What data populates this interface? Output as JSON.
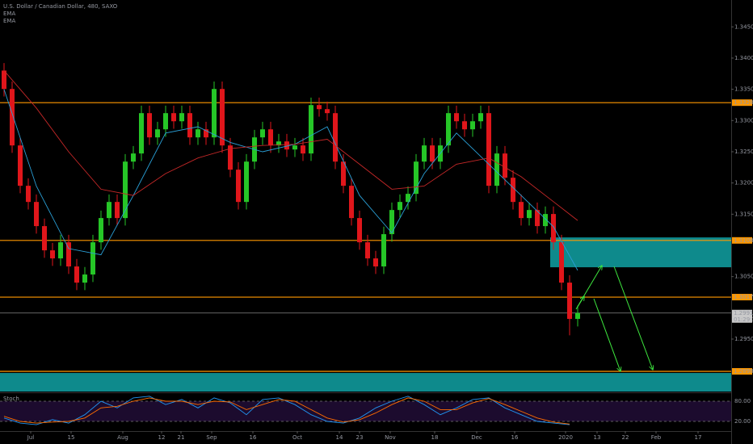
{
  "chart_data": {
    "type": "candlestick",
    "title": "U.S. Dollar / Canadian Dollar, 480, SAXO",
    "open": [
      1.338,
      1.33505,
      1.32601,
      1.31955,
      1.31696,
      1.31309,
      1.30921,
      1.30792,
      1.3105,
      1.30663,
      1.30404,
      1.30534,
      1.3105,
      1.31438,
      1.31696,
      1.31438,
      1.32342,
      1.32472,
      1.33118,
      1.3273,
      1.32859,
      1.33118,
      1.32988,
      1.33118,
      1.3273,
      1.32859,
      1.3273,
      1.33505,
      1.32601,
      1.32213,
      1.31696,
      1.32342,
      1.3273,
      1.32859,
      1.32601,
      1.32665,
      1.32536,
      1.32601,
      1.32472,
      1.33247,
      1.33182,
      1.33118,
      1.32342,
      1.31955,
      1.31438,
      1.3105,
      1.30792,
      1.30663,
      1.3118,
      1.31567,
      1.31696,
      1.31826,
      1.32342,
      1.32601,
      1.32342,
      1.32601,
      1.33118,
      1.32988,
      1.32859,
      1.32988,
      1.33118,
      1.31955,
      1.32472,
      1.32084,
      1.31696,
      1.31438,
      1.31567,
      1.31309,
      1.31503,
      1.3105,
      1.30404,
      1.29823
    ],
    "high": [
      1.3392,
      1.33625,
      1.32721,
      1.32075,
      1.31816,
      1.31429,
      1.31041,
      1.3117,
      1.3117,
      1.30783,
      1.30654,
      1.3117,
      1.31558,
      1.31816,
      1.31816,
      1.32462,
      1.32592,
      1.33238,
      1.33238,
      1.32979,
      1.33238,
      1.33238,
      1.33238,
      1.33238,
      1.32979,
      1.32979,
      1.33625,
      1.33625,
      1.32721,
      1.32333,
      1.32462,
      1.3285,
      1.32979,
      1.32979,
      1.32785,
      1.32785,
      1.32721,
      1.32721,
      1.33367,
      1.33367,
      1.33302,
      1.33238,
      1.32462,
      1.32075,
      1.31558,
      1.3117,
      1.30912,
      1.313,
      1.31687,
      1.31816,
      1.31946,
      1.32462,
      1.32721,
      1.32721,
      1.32721,
      1.33238,
      1.33238,
      1.33108,
      1.33108,
      1.33238,
      1.33238,
      1.32592,
      1.32592,
      1.32204,
      1.31816,
      1.31687,
      1.31687,
      1.31623,
      1.31623,
      1.3117,
      1.30524,
      1.30037
    ],
    "low": [
      1.33385,
      1.32481,
      1.31835,
      1.31576,
      1.31189,
      1.30801,
      1.30672,
      1.30672,
      1.30543,
      1.30284,
      1.30284,
      1.30414,
      1.3093,
      1.31318,
      1.31318,
      1.31318,
      1.32222,
      1.32352,
      1.3261,
      1.3261,
      1.32739,
      1.32868,
      1.32868,
      1.3261,
      1.3261,
      1.3261,
      1.3261,
      1.32481,
      1.32093,
      1.31576,
      1.31576,
      1.32222,
      1.3261,
      1.32481,
      1.32481,
      1.32416,
      1.32416,
      1.32352,
      1.32352,
      1.33062,
      1.32998,
      1.32222,
      1.31835,
      1.31318,
      1.3093,
      1.30672,
      1.30543,
      1.30543,
      1.3106,
      1.31447,
      1.31576,
      1.31706,
      1.32222,
      1.32222,
      1.32222,
      1.32481,
      1.32868,
      1.32739,
      1.32739,
      1.32868,
      1.31835,
      1.31835,
      1.31964,
      1.31576,
      1.31318,
      1.31318,
      1.31189,
      1.31189,
      1.3093,
      1.30284,
      1.2956,
      1.29703
    ],
    "close": [
      1.33505,
      1.32601,
      1.31955,
      1.31696,
      1.31309,
      1.30921,
      1.30792,
      1.3105,
      1.30663,
      1.30404,
      1.30534,
      1.3105,
      1.31438,
      1.31696,
      1.31438,
      1.32342,
      1.32472,
      1.33118,
      1.3273,
      1.32859,
      1.33118,
      1.32988,
      1.33118,
      1.3273,
      1.32859,
      1.3273,
      1.33505,
      1.32601,
      1.32213,
      1.31696,
      1.32342,
      1.3273,
      1.32859,
      1.32601,
      1.32665,
      1.32536,
      1.32601,
      1.32472,
      1.33247,
      1.33182,
      1.33118,
      1.32342,
      1.31955,
      1.31438,
      1.3105,
      1.30792,
      1.30663,
      1.3118,
      1.31567,
      1.31696,
      1.31826,
      1.32342,
      1.32601,
      1.32342,
      1.32601,
      1.33118,
      1.32988,
      1.32859,
      1.32988,
      1.33118,
      1.31955,
      1.32472,
      1.32084,
      1.31696,
      1.31438,
      1.31567,
      1.31309,
      1.31503,
      1.3105,
      1.30404,
      1.29823,
      1.29917
    ],
    "up_color": "#26c627",
    "down_color": "#e0161b",
    "xlim": [
      -0.5,
      90
    ],
    "xticks": [
      {
        "value": 3.3,
        "label": "Jul"
      },
      {
        "value": 8.3,
        "label": "15"
      },
      {
        "value": 14.7,
        "label": "Aug"
      },
      {
        "value": 19.5,
        "label": "12"
      },
      {
        "value": 21.9,
        "label": "21"
      },
      {
        "value": 25.7,
        "label": "Sep"
      },
      {
        "value": 30.8,
        "label": "16"
      },
      {
        "value": 36.3,
        "label": "Oct"
      },
      {
        "value": 41.5,
        "label": "14"
      },
      {
        "value": 44,
        "label": "23"
      },
      {
        "value": 47.8,
        "label": "Nov"
      },
      {
        "value": 53.3,
        "label": "18"
      },
      {
        "value": 58.5,
        "label": "Dec"
      },
      {
        "value": 63.2,
        "label": "16"
      },
      {
        "value": 69.5,
        "label": "2020"
      },
      {
        "value": 73.4,
        "label": "13"
      },
      {
        "value": 76.9,
        "label": "22"
      },
      {
        "value": 80.7,
        "label": "Feb"
      },
      {
        "value": 85.9,
        "label": "17"
      }
    ],
    "ylim": [
      1.2866,
      1.3493
    ],
    "yticks": [
      {
        "value": 1.345,
        "label": "1.34500"
      },
      {
        "value": 1.34,
        "label": "1.34000"
      },
      {
        "value": 1.335,
        "label": "1.33500"
      },
      {
        "value": 1.33,
        "label": "1.33000"
      },
      {
        "value": 1.325,
        "label": "1.32500"
      },
      {
        "value": 1.32,
        "label": "1.32000"
      },
      {
        "value": 1.315,
        "label": "1.31500"
      },
      {
        "value": 1.305,
        "label": "1.30500"
      },
      {
        "value": 1.295,
        "label": "1.29500"
      }
    ],
    "overlays": [
      {
        "name": "EMA",
        "color": "#2a9fd6",
        "x": [
          0,
          4,
          8,
          12,
          16,
          20,
          24,
          28,
          32,
          36,
          40,
          44,
          48,
          52,
          56,
          60,
          64,
          68,
          71
        ],
        "values": [
          1.335,
          1.3195,
          1.3095,
          1.3085,
          1.318,
          1.328,
          1.329,
          1.3265,
          1.325,
          1.3262,
          1.329,
          1.318,
          1.312,
          1.3215,
          1.328,
          1.323,
          1.318,
          1.313,
          1.306
        ]
      },
      {
        "name": "EMA",
        "color": "#c62828",
        "x": [
          0,
          4,
          8,
          12,
          16,
          20,
          24,
          28,
          32,
          36,
          40,
          44,
          48,
          52,
          56,
          60,
          64,
          68,
          71
        ],
        "values": [
          1.338,
          1.332,
          1.325,
          1.319,
          1.318,
          1.3215,
          1.324,
          1.3255,
          1.326,
          1.3262,
          1.327,
          1.323,
          1.319,
          1.3195,
          1.323,
          1.324,
          1.321,
          1.317,
          1.314
        ]
      }
    ],
    "levels": [
      {
        "value": 1.33286,
        "label": "1.33286"
      },
      {
        "value": 1.3108,
        "label": "1.31080"
      },
      {
        "value": 1.30172,
        "label": "1.30172"
      },
      {
        "value": 1.28983,
        "label": "1.28983"
      }
    ],
    "level_color": "#ff9800",
    "zones": [
      {
        "from": 1.3065,
        "to": 1.31128
      },
      {
        "from": 1.2866,
        "to": 1.28957
      }
    ],
    "zone_color": "#0e8a8c",
    "last_price": {
      "value": 1.29917,
      "label": "1.29917"
    },
    "countdown": "01:29:12",
    "stoch": {
      "name": "Stoch",
      "ylim": [
        0,
        100
      ],
      "yticks": [
        {
          "value": 80,
          "label": "80.00"
        },
        {
          "value": 20,
          "label": "20.00"
        }
      ],
      "x": [
        0,
        2,
        4,
        6,
        8,
        10,
        12,
        14,
        16,
        18,
        20,
        22,
        24,
        26,
        28,
        30,
        32,
        34,
        36,
        38,
        40,
        42,
        44,
        46,
        48,
        50,
        52,
        54,
        56,
        58,
        60,
        62,
        64,
        66,
        68,
        70
      ],
      "series": [
        {
          "color": "#2196f3",
          "values": [
            30,
            15,
            10,
            25,
            15,
            40,
            80,
            60,
            90,
            95,
            70,
            85,
            60,
            90,
            75,
            40,
            85,
            90,
            70,
            40,
            20,
            15,
            30,
            60,
            80,
            95,
            70,
            40,
            60,
            85,
            90,
            60,
            40,
            20,
            15,
            10
          ]
        },
        {
          "color": "#ff6d00",
          "values": [
            35,
            20,
            15,
            18,
            20,
            30,
            60,
            65,
            80,
            90,
            80,
            80,
            70,
            80,
            78,
            55,
            70,
            85,
            80,
            55,
            30,
            18,
            25,
            45,
            70,
            90,
            80,
            55,
            55,
            75,
            88,
            70,
            50,
            30,
            18,
            12
          ]
        }
      ]
    }
  }
}
